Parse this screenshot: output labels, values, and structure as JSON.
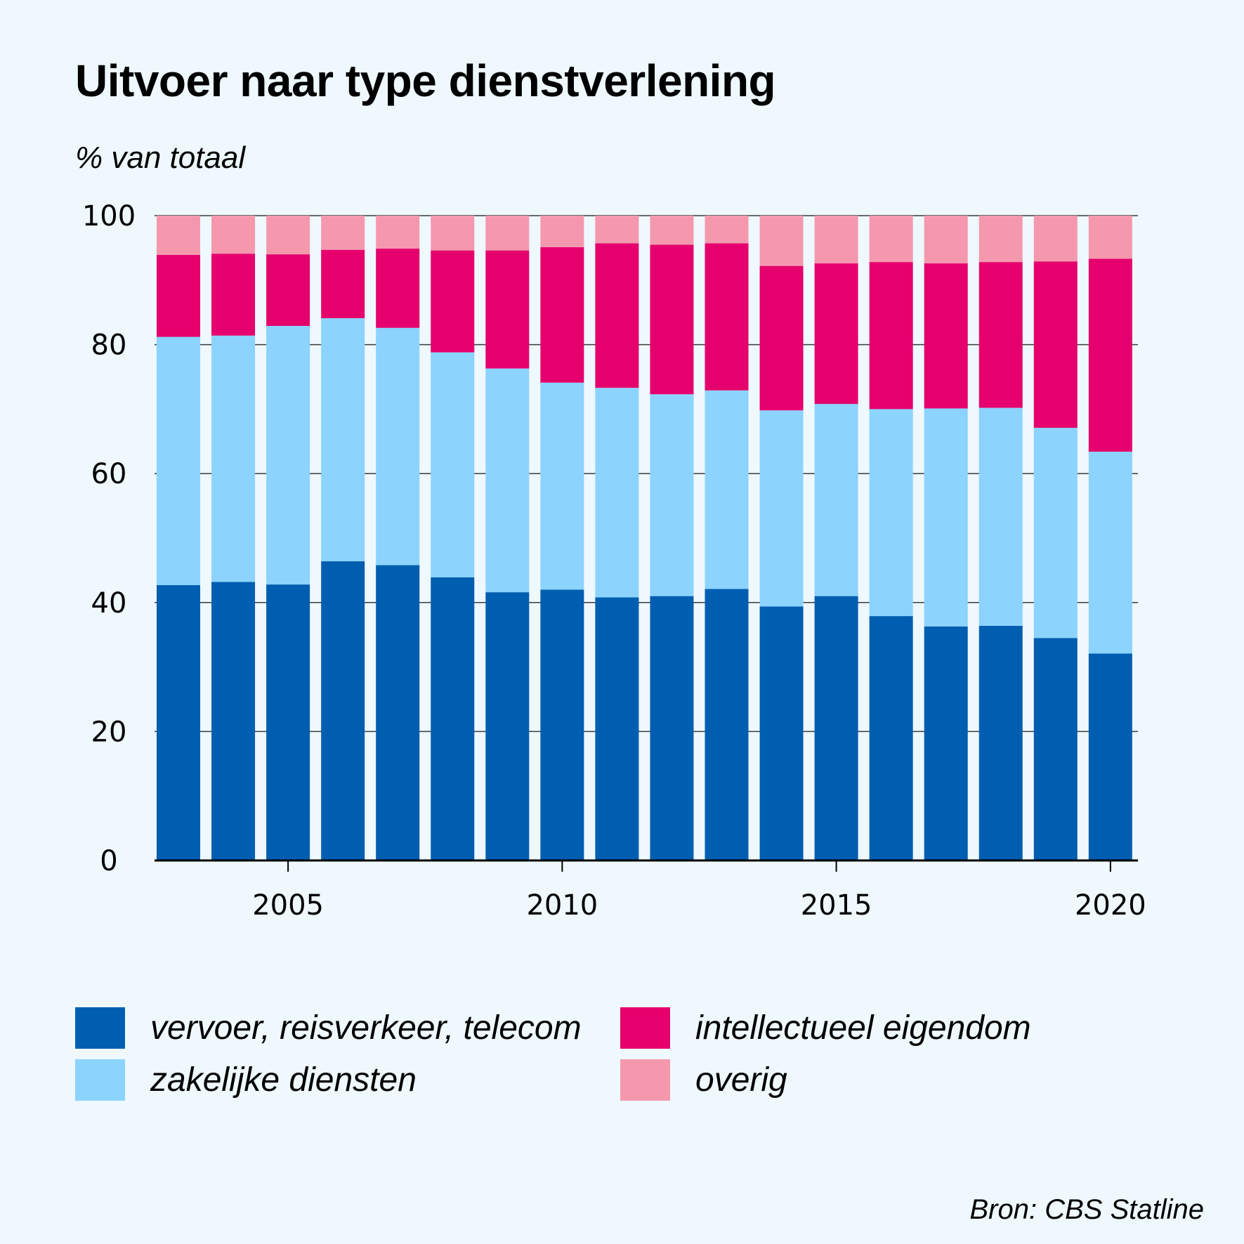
{
  "chart_data": {
    "type": "bar",
    "stacked": true,
    "title": "Uitvoer naar type dienstverlening",
    "ylabel": "% van totaal",
    "xlabel": "",
    "ylim": [
      0,
      100
    ],
    "yticks": [
      0,
      20,
      40,
      60,
      80,
      100
    ],
    "ytick_labels": [
      "0",
      "20",
      "40",
      "60",
      "80",
      "100"
    ],
    "xticks": [
      2005,
      2010,
      2015,
      2020
    ],
    "xtick_labels": [
      "2005",
      "2010",
      "2015",
      "2020"
    ],
    "grid": true,
    "legend_position": "bottom",
    "categories": [
      2003,
      2004,
      2005,
      2006,
      2007,
      2008,
      2009,
      2010,
      2011,
      2012,
      2013,
      2014,
      2015,
      2016,
      2017,
      2018,
      2019,
      2020
    ],
    "series": [
      {
        "name": "vervoer, reisverkeer, telecom",
        "color": "#005eb0",
        "values": [
          42.7,
          43.2,
          42.8,
          46.4,
          45.8,
          43.9,
          41.6,
          42.0,
          40.8,
          41.0,
          42.1,
          39.4,
          41.0,
          37.9,
          36.3,
          36.4,
          34.5,
          32.1
        ]
      },
      {
        "name": "zakelijke diensten",
        "color": "#8cd3fd",
        "values": [
          38.5,
          38.2,
          40.1,
          37.7,
          36.8,
          34.9,
          34.7,
          32.1,
          32.5,
          31.3,
          30.8,
          30.4,
          29.8,
          32.1,
          33.8,
          33.8,
          32.6,
          31.3
        ]
      },
      {
        "name": "intellectueel eigendom",
        "color": "#e5006d",
        "values": [
          12.7,
          12.7,
          11.1,
          10.6,
          12.3,
          15.8,
          18.3,
          21.0,
          22.4,
          23.2,
          22.8,
          22.4,
          21.8,
          22.8,
          22.5,
          22.6,
          25.8,
          29.9
        ]
      },
      {
        "name": "overig",
        "color": "#f598ae",
        "values": [
          6.1,
          5.9,
          6.0,
          5.3,
          5.1,
          5.4,
          5.4,
          4.9,
          4.3,
          4.5,
          4.3,
          7.8,
          7.4,
          7.2,
          7.4,
          7.2,
          7.1,
          6.7
        ]
      }
    ]
  },
  "source": "Bron: CBS Statline"
}
